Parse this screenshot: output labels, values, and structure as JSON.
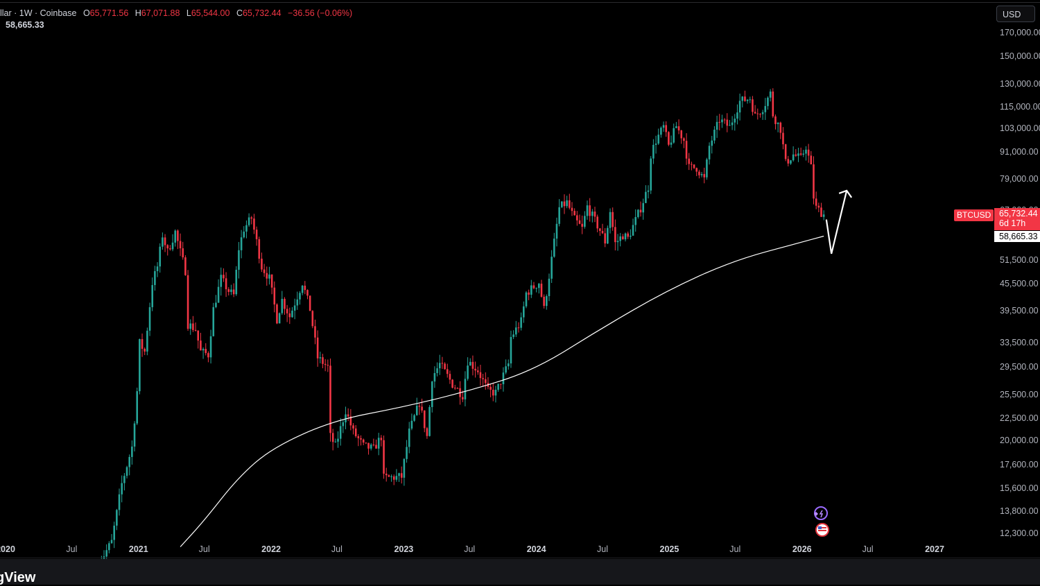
{
  "header": {
    "title_fragment": "llar · 1W · Coinbase",
    "open_label": "O",
    "open_value": "65,771.56",
    "high_label": "H",
    "high_value": "67,071.88",
    "low_label": "L",
    "low_value": "65,544.00",
    "close_label": "C",
    "close_value": "65,732.44",
    "change": "−36.56 (−0.06%)",
    "ma_value": "58,665.33"
  },
  "currency": "USD",
  "price_tags": {
    "symbol": "BTCUSD",
    "last_price": "65,732.44",
    "countdown": "6d 17h",
    "ma_price": "58,665.33"
  },
  "brand": "gView",
  "colors": {
    "up": "#26a69a",
    "down": "#f23645",
    "ma": "#ffffff",
    "background": "#000000"
  },
  "chart_data": {
    "type": "candlestick",
    "symbol": "BTCUSD",
    "interval": "1W",
    "exchange": "Coinbase",
    "scale": "log",
    "ylim": [
      11500,
      185000
    ],
    "y_ticks": [
      "170,000.00",
      "150,000.00",
      "130,000.00",
      "115,000.00",
      "103,000.00",
      "91,000.00",
      "79,000.00",
      "67,000.00",
      "51,500.00",
      "45,500.00",
      "39,500.00",
      "33,500.00",
      "29,500.00",
      "25,500.00",
      "22,500.00",
      "20,000.00",
      "17,600.00",
      "15,600.00",
      "13,800.00",
      "12,300.00"
    ],
    "x_ticks": [
      {
        "label": "2020",
        "date": "2020-01",
        "year": true
      },
      {
        "label": "Jul",
        "date": "2020-07"
      },
      {
        "label": "2021",
        "date": "2021-01",
        "year": true
      },
      {
        "label": "Jul",
        "date": "2021-07"
      },
      {
        "label": "2022",
        "date": "2022-01",
        "year": true
      },
      {
        "label": "Jul",
        "date": "2022-07"
      },
      {
        "label": "2023",
        "date": "2023-01",
        "year": true
      },
      {
        "label": "Jul",
        "date": "2023-07"
      },
      {
        "label": "2024",
        "date": "2024-01",
        "year": true
      },
      {
        "label": "Jul",
        "date": "2024-07"
      },
      {
        "label": "2025",
        "date": "2025-01",
        "year": true
      },
      {
        "label": "Jul",
        "date": "2025-07"
      },
      {
        "label": "2026",
        "date": "2026-01",
        "year": true
      },
      {
        "label": "Jul",
        "date": "2026-07"
      },
      {
        "label": "2027",
        "date": "2027-01",
        "year": true
      }
    ],
    "price_path": [
      [
        "2020-09-07",
        10300
      ],
      [
        "2020-10-19",
        11800
      ],
      [
        "2020-11-16",
        16000
      ],
      [
        "2020-12-14",
        19400
      ],
      [
        "2020-12-28",
        26000
      ],
      [
        "2021-01-04",
        33500
      ],
      [
        "2021-01-18",
        32000
      ],
      [
        "2021-02-08",
        46000
      ],
      [
        "2021-02-22",
        50000
      ],
      [
        "2021-03-08",
        59000
      ],
      [
        "2021-03-22",
        54000
      ],
      [
        "2021-04-12",
        60000
      ],
      [
        "2021-04-26",
        54000
      ],
      [
        "2021-05-10",
        49000
      ],
      [
        "2021-05-17",
        37000
      ],
      [
        "2021-06-07",
        36000
      ],
      [
        "2021-06-21",
        32000
      ],
      [
        "2021-07-12",
        31500
      ],
      [
        "2021-07-26",
        40000
      ],
      [
        "2021-08-16",
        47000
      ],
      [
        "2021-09-06",
        44000
      ],
      [
        "2021-09-20",
        43000
      ],
      [
        "2021-10-04",
        55000
      ],
      [
        "2021-10-18",
        61000
      ],
      [
        "2021-11-08",
        64500
      ],
      [
        "2021-11-22",
        57000
      ],
      [
        "2021-12-06",
        50000
      ],
      [
        "2021-12-27",
        47000
      ],
      [
        "2022-01-17",
        38000
      ],
      [
        "2022-01-31",
        42000
      ],
      [
        "2022-02-21",
        38500
      ],
      [
        "2022-03-28",
        46000
      ],
      [
        "2022-04-18",
        40000
      ],
      [
        "2022-05-09",
        31000
      ],
      [
        "2022-06-06",
        29500
      ],
      [
        "2022-06-13",
        20500
      ],
      [
        "2022-06-27",
        19500
      ],
      [
        "2022-07-25",
        23500
      ],
      [
        "2022-08-15",
        21000
      ],
      [
        "2022-09-12",
        19500
      ],
      [
        "2022-10-10",
        19200
      ],
      [
        "2022-10-31",
        20500
      ],
      [
        "2022-11-07",
        16500
      ],
      [
        "2022-12-26",
        16600
      ],
      [
        "2023-01-16",
        21000
      ],
      [
        "2023-02-13",
        24500
      ],
      [
        "2023-03-06",
        20500
      ],
      [
        "2023-03-20",
        28000
      ],
      [
        "2023-04-10",
        30000
      ],
      [
        "2023-05-15",
        27000
      ],
      [
        "2023-06-12",
        25500
      ],
      [
        "2023-06-26",
        30500
      ],
      [
        "2023-07-24",
        29000
      ],
      [
        "2023-08-21",
        26000
      ],
      [
        "2023-09-11",
        25800
      ],
      [
        "2023-10-16",
        30000
      ],
      [
        "2023-10-23",
        34500
      ],
      [
        "2023-11-20",
        37500
      ],
      [
        "2023-12-04",
        43500
      ],
      [
        "2024-01-08",
        46000
      ],
      [
        "2024-01-22",
        40000
      ],
      [
        "2024-02-12",
        52000
      ],
      [
        "2024-03-04",
        68000
      ],
      [
        "2024-03-25",
        70000
      ],
      [
        "2024-04-15",
        64000
      ],
      [
        "2024-05-06",
        61000
      ],
      [
        "2024-05-20",
        68500
      ],
      [
        "2024-06-24",
        60500
      ],
      [
        "2024-07-08",
        57000
      ],
      [
        "2024-07-22",
        67000
      ],
      [
        "2024-08-05",
        56500
      ],
      [
        "2024-08-26",
        59000
      ],
      [
        "2024-09-09",
        58000
      ],
      [
        "2024-10-14",
        68000
      ],
      [
        "2024-11-04",
        76000
      ],
      [
        "2024-11-11",
        90000
      ],
      [
        "2024-11-25",
        97000
      ],
      [
        "2024-12-16",
        104000
      ],
      [
        "2024-12-30",
        94000
      ],
      [
        "2025-01-20",
        104500
      ],
      [
        "2025-02-10",
        97000
      ],
      [
        "2025-02-24",
        84000
      ],
      [
        "2025-03-17",
        84000
      ],
      [
        "2025-04-07",
        79000
      ],
      [
        "2025-04-21",
        94000
      ],
      [
        "2025-05-19",
        108000
      ],
      [
        "2025-06-16",
        104000
      ],
      [
        "2025-07-14",
        119000
      ],
      [
        "2025-08-11",
        121000
      ],
      [
        "2025-08-25",
        110000
      ],
      [
        "2025-09-15",
        115000
      ],
      [
        "2025-10-06",
        124000
      ],
      [
        "2025-10-13",
        111000
      ],
      [
        "2025-11-03",
        103000
      ],
      [
        "2025-11-17",
        86000
      ],
      [
        "2025-12-08",
        90000
      ],
      [
        "2025-12-29",
        88000
      ],
      [
        "2026-01-12",
        94000
      ],
      [
        "2026-01-26",
        84000
      ],
      [
        "2026-02-02",
        72000
      ],
      [
        "2026-02-09",
        68000
      ],
      [
        "2026-02-23",
        66500
      ],
      [
        "2026-03-02",
        65732
      ]
    ],
    "ma_line": [
      [
        "2021-04-26",
        11500
      ],
      [
        "2021-07-01",
        13200
      ],
      [
        "2021-10-01",
        16500
      ],
      [
        "2022-01-03",
        19300
      ],
      [
        "2022-06-20",
        22300
      ],
      [
        "2022-12-26",
        23900
      ],
      [
        "2023-06-26",
        26000
      ],
      [
        "2023-12-25",
        29000
      ],
      [
        "2024-06-24",
        36000
      ],
      [
        "2024-12-23",
        44000
      ],
      [
        "2025-06-23",
        51500
      ],
      [
        "2025-12-29",
        56800
      ],
      [
        "2026-03-02",
        58665
      ]
    ],
    "annotation_arrow": [
      [
        "2026-03-09",
        64000
      ],
      [
        "2026-03-23",
        53500
      ],
      [
        "2026-05-04",
        74500
      ]
    ]
  }
}
